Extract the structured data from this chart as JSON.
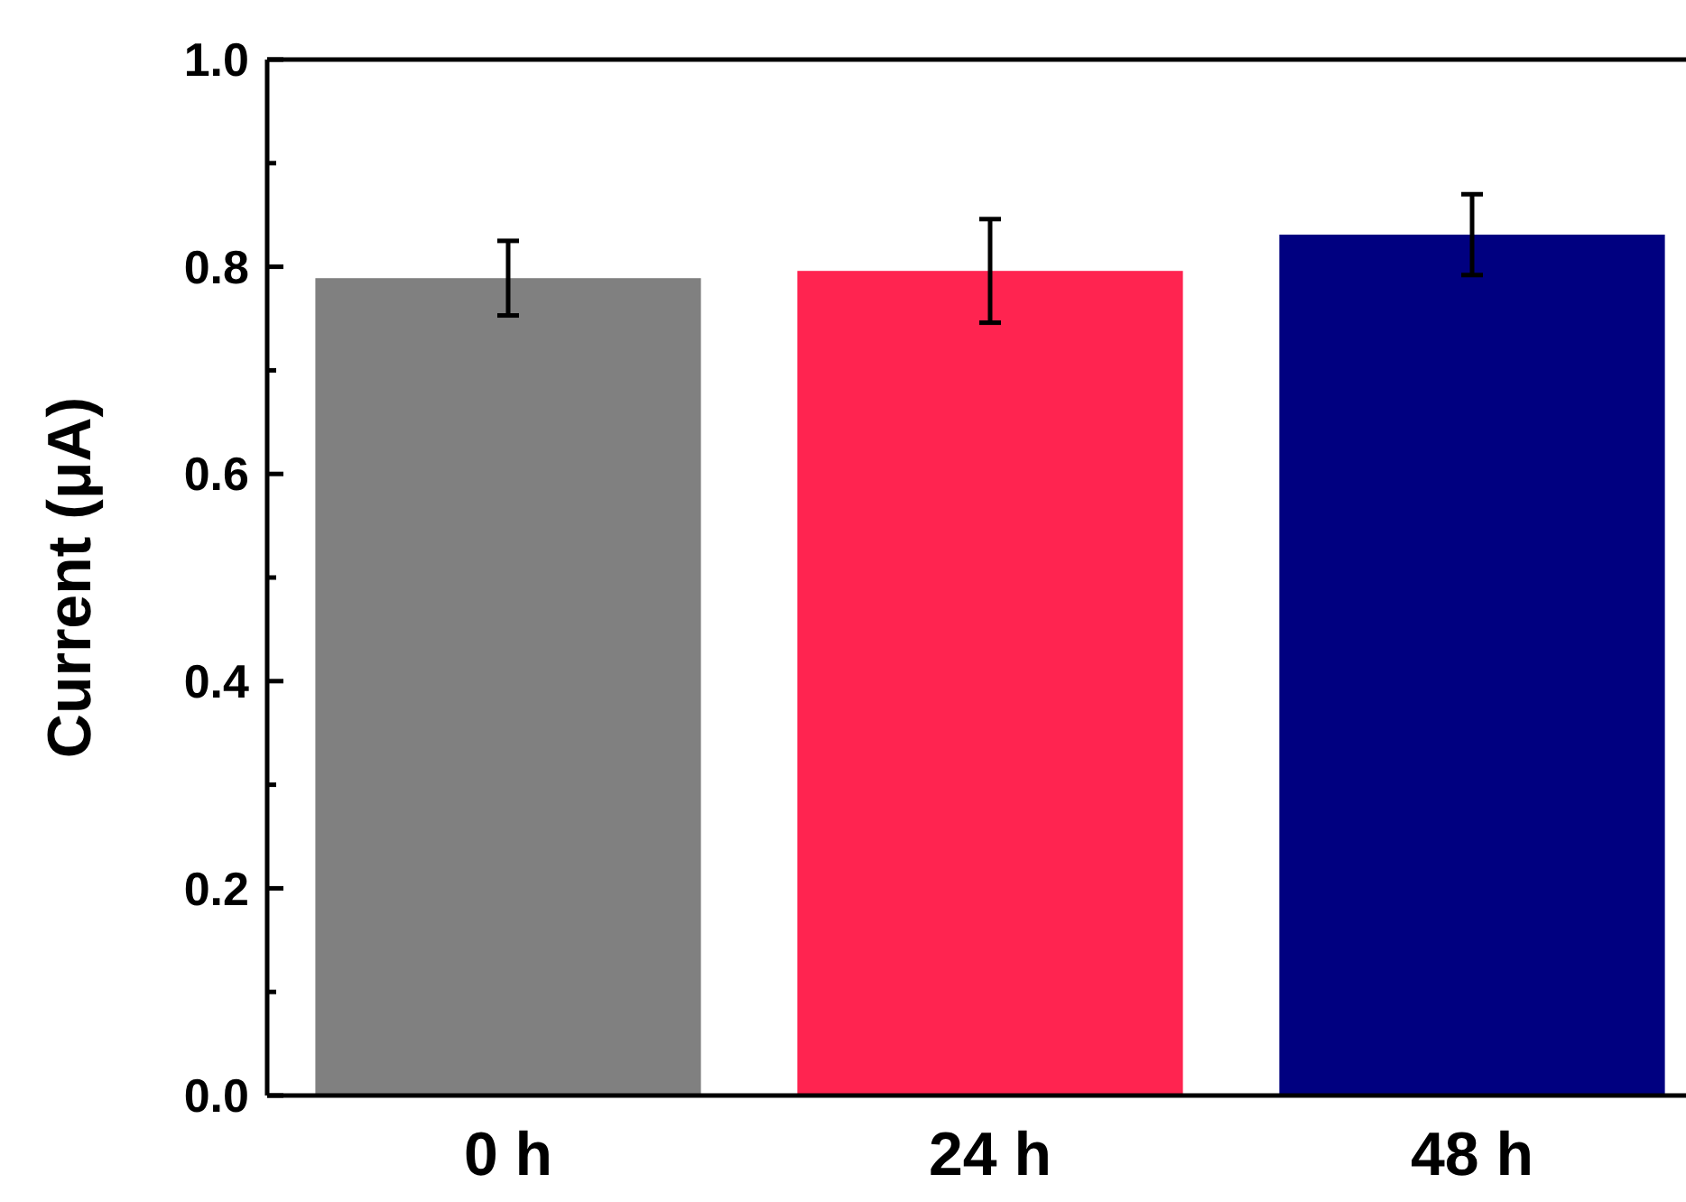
{
  "chart_data": {
    "type": "bar",
    "ylabel": "Current (μA)",
    "categories": [
      "0 h",
      "24 h",
      "48 h"
    ],
    "values": [
      0.789,
      0.796,
      0.831
    ],
    "colors": [
      "#808080",
      "#ff2450",
      "#000080"
    ],
    "errors": [
      0.036,
      0.05,
      0.039
    ],
    "ylim": [
      0,
      1
    ],
    "yticks": [
      {
        "value": 0,
        "label": "0.0"
      },
      {
        "value": 0.1,
        "label": null
      },
      {
        "value": 0.2,
        "label": "0.2"
      },
      {
        "value": 0.3,
        "label": null
      },
      {
        "value": 0.4,
        "label": "0.4"
      },
      {
        "value": 0.5,
        "label": null
      },
      {
        "value": 0.6,
        "label": "0.6"
      },
      {
        "value": 0.7,
        "label": null
      },
      {
        "value": 0.8,
        "label": "0.8"
      },
      {
        "value": 0.9,
        "label": null
      },
      {
        "value": 1,
        "label": "1.0"
      }
    ],
    "grid": false
  }
}
